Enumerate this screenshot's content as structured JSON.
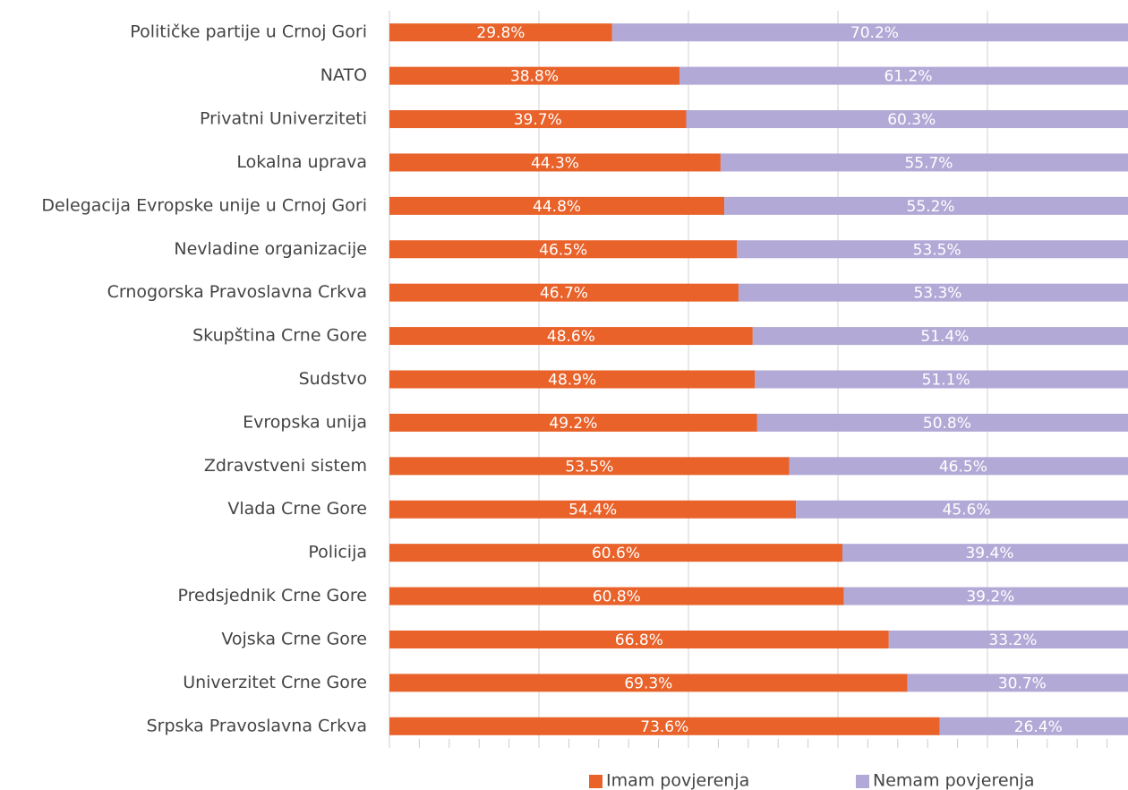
{
  "chart_data": {
    "type": "stacked_barh",
    "categories": [
      "Političke partije u Crnoj Gori",
      "NATO",
      "Privatni Univerziteti",
      "Lokalna uprava",
      "Delegacija Evropske unije u Crnoj Gori",
      "Nevladine organizacije",
      "Crnogorska Pravoslavna Crkva",
      "Skupština Crne Gore",
      "Sudstvo",
      "Evropska unija",
      "Zdravstveni sistem",
      "Vlada Crne Gore",
      "Policija",
      "Predsjednik Crne Gore",
      "Vojska Crne Gore",
      "Univerzitet Crne Gore",
      "Srpska Pravoslavna Crkva"
    ],
    "series": [
      {
        "name": "Imam povjerenja",
        "color": "#e8622a",
        "values": [
          29.8,
          38.8,
          39.7,
          44.3,
          44.8,
          46.5,
          46.7,
          48.6,
          48.9,
          49.2,
          53.5,
          54.4,
          60.6,
          60.8,
          66.8,
          69.3,
          73.6
        ],
        "value_labels": [
          "29.8%",
          "38.8%",
          "39.7%",
          "44.3%",
          "44.8%",
          "46.5%",
          "46.7%",
          "48.6%",
          "48.9%",
          "49.2%",
          "53.5%",
          "54.4%",
          "60.6%",
          "60.8%",
          "66.8%",
          "69.3%",
          "73.6%"
        ]
      },
      {
        "name": "Nemam povjerenja",
        "color": "#b3a9d6",
        "values": [
          70.2,
          61.2,
          60.3,
          55.7,
          55.2,
          53.5,
          53.3,
          51.4,
          51.1,
          50.8,
          46.5,
          45.6,
          39.4,
          39.2,
          33.2,
          30.7,
          26.4
        ],
        "value_labels": [
          "70.2%",
          "61.2%",
          "60.3%",
          "55.7%",
          "55.2%",
          "53.5%",
          "53.3%",
          "51.4%",
          "51.1%",
          "50.8%",
          "46.5%",
          "45.6%",
          "39.4%",
          "39.2%",
          "33.2%",
          "30.7%",
          "26.4%"
        ]
      }
    ],
    "xlim": [
      0,
      100
    ],
    "xticks": [
      0,
      20,
      40,
      60,
      80,
      100
    ],
    "grid": true,
    "legend": "bottom"
  }
}
